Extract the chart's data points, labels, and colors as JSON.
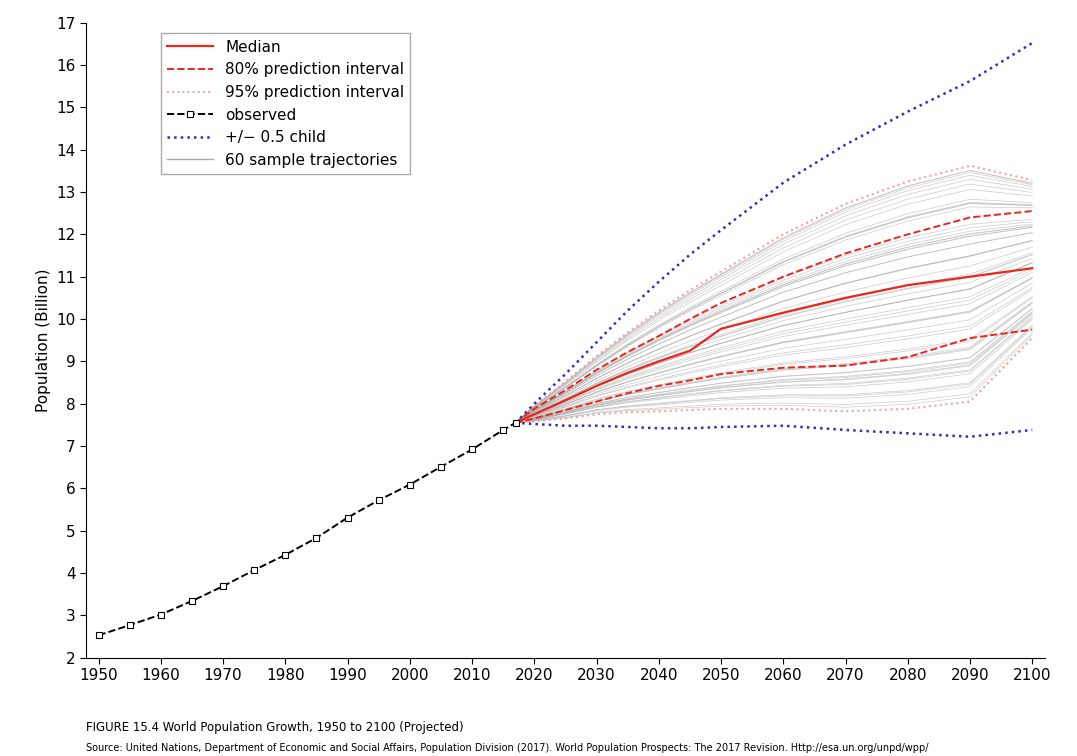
{
  "title": "FIGURE 15.4 World Population Growth, 1950 to 2100 (Projected)",
  "source": "Source: United Nations, Department of Economic and Social Affairs, Population Division (2017). World Population Prospects: The 2017 Revision. Http://esa.un.org/unpd/wpp/",
  "ylabel": "Population (Billion)",
  "xlim": [
    1948,
    2102
  ],
  "ylim": [
    2,
    17
  ],
  "yticks": [
    2,
    3,
    4,
    5,
    6,
    7,
    8,
    9,
    10,
    11,
    12,
    13,
    14,
    15,
    16,
    17
  ],
  "xticks": [
    1950,
    1960,
    1970,
    1980,
    1990,
    2000,
    2010,
    2020,
    2030,
    2040,
    2050,
    2060,
    2070,
    2080,
    2090,
    2100
  ],
  "observed_years": [
    1950,
    1955,
    1960,
    1965,
    1970,
    1975,
    1980,
    1985,
    1990,
    1995,
    2000,
    2005,
    2010,
    2015,
    2017
  ],
  "observed_pop": [
    2.53,
    2.77,
    3.02,
    3.34,
    3.69,
    4.07,
    4.43,
    4.83,
    5.31,
    5.72,
    6.09,
    6.51,
    6.92,
    7.38,
    7.55
  ],
  "median_years": [
    2017,
    2020,
    2025,
    2030,
    2035,
    2040,
    2045,
    2050,
    2060,
    2070,
    2080,
    2090,
    2100
  ],
  "median_pop": [
    7.55,
    7.75,
    8.08,
    8.42,
    8.73,
    9.0,
    9.25,
    9.77,
    10.15,
    10.5,
    10.8,
    11.0,
    11.2
  ],
  "pi80_upper_years": [
    2017,
    2020,
    2025,
    2030,
    2035,
    2040,
    2045,
    2050,
    2060,
    2070,
    2080,
    2090,
    2100
  ],
  "pi80_upper_pop": [
    7.55,
    7.88,
    8.32,
    8.8,
    9.22,
    9.6,
    10.0,
    10.38,
    11.0,
    11.55,
    12.0,
    12.4,
    12.55
  ],
  "pi80_lower_years": [
    2017,
    2020,
    2025,
    2030,
    2035,
    2040,
    2045,
    2050,
    2060,
    2070,
    2080,
    2090,
    2100
  ],
  "pi80_lower_pop": [
    7.55,
    7.65,
    7.85,
    8.05,
    8.25,
    8.42,
    8.55,
    8.7,
    8.85,
    8.9,
    9.1,
    9.55,
    9.75
  ],
  "pi95_upper_years": [
    2017,
    2020,
    2025,
    2030,
    2035,
    2040,
    2045,
    2050,
    2060,
    2070,
    2080,
    2090,
    2100
  ],
  "pi95_upper_pop": [
    7.55,
    7.95,
    8.52,
    9.12,
    9.68,
    10.2,
    10.68,
    11.12,
    12.0,
    12.72,
    13.25,
    13.62,
    13.28
  ],
  "pi95_lower_years": [
    2017,
    2020,
    2025,
    2030,
    2035,
    2040,
    2045,
    2050,
    2060,
    2070,
    2080,
    2090,
    2100
  ],
  "pi95_lower_pop": [
    7.55,
    7.58,
    7.65,
    7.75,
    7.8,
    7.82,
    7.85,
    7.88,
    7.88,
    7.82,
    7.88,
    8.05,
    9.55
  ],
  "child05_upper_years": [
    2017,
    2020,
    2025,
    2030,
    2035,
    2040,
    2045,
    2050,
    2060,
    2070,
    2080,
    2090,
    2100
  ],
  "child05_upper_pop": [
    7.55,
    8.0,
    8.7,
    9.45,
    10.2,
    10.88,
    11.52,
    12.1,
    13.22,
    14.12,
    14.9,
    15.62,
    16.52
  ],
  "child05_lower_years": [
    2017,
    2020,
    2025,
    2030,
    2035,
    2040,
    2045,
    2050,
    2060,
    2070,
    2080,
    2090,
    2100
  ],
  "child05_lower_pop": [
    7.55,
    7.52,
    7.48,
    7.48,
    7.45,
    7.42,
    7.42,
    7.45,
    7.48,
    7.38,
    7.3,
    7.22,
    7.38
  ],
  "median_color": "#e8281e",
  "pi80_color": "#e8281e",
  "pi95_color": "#f5a0a0",
  "child05_color": "#3030bb",
  "observed_color": "#000000",
  "trajectory_color": "#aaaaaa",
  "background_color": "#ffffff",
  "n_trajectories": 60,
  "traj_seed": 42
}
